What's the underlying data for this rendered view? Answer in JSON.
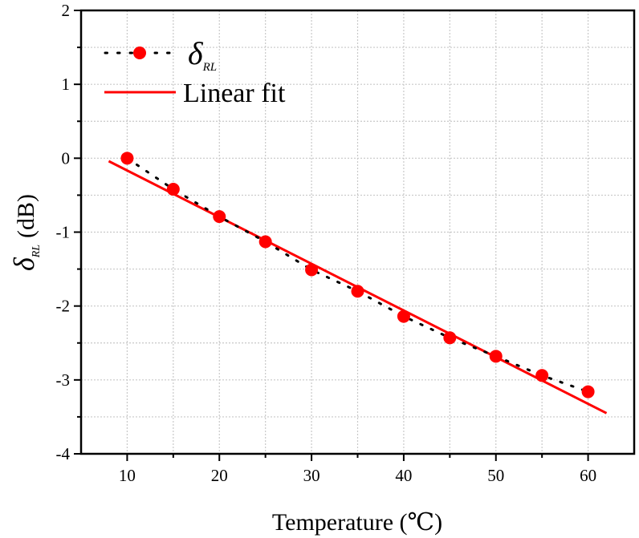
{
  "chart_data": {
    "type": "scatter",
    "xlabel": "Temperature (℃)",
    "ylabel_symbol": "δ",
    "ylabel_subscript": "RL",
    "ylabel_unit": "(dB)",
    "xlim": [
      5,
      65
    ],
    "ylim": [
      -4,
      2
    ],
    "x_ticks": [
      10,
      20,
      30,
      40,
      50,
      60
    ],
    "y_ticks": [
      -4,
      -3,
      -2,
      -1,
      0,
      1,
      2
    ],
    "grid": true,
    "legend_position": "top-left",
    "series": [
      {
        "name": "δRL",
        "legend_symbol": "δ",
        "legend_subscript": "RL",
        "style": "dotted line with circle markers",
        "color": "#ff0000",
        "line_color": "#000000",
        "x": [
          10,
          15,
          20,
          25,
          30,
          35,
          40,
          45,
          50,
          55,
          60
        ],
        "y": [
          0,
          -0.42,
          -0.79,
          -1.13,
          -1.51,
          -1.8,
          -2.14,
          -2.43,
          -2.68,
          -2.94,
          -3.16
        ]
      },
      {
        "name": "Linear fit",
        "style": "solid line",
        "color": "#ff0000",
        "x": [
          8,
          62
        ],
        "y": [
          -0.04,
          -3.45
        ]
      }
    ]
  }
}
